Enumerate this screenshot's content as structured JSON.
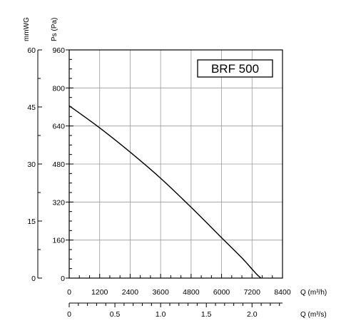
{
  "chart_data": {
    "type": "line",
    "title": "BRF 500",
    "x_axis": {
      "label": "Q (m³/h)",
      "min": 0,
      "max": 8400,
      "ticks": [
        0,
        1200,
        2400,
        3600,
        4800,
        6000,
        7200,
        8400
      ],
      "minor_step": 400
    },
    "x_axis_secondary": {
      "label": "Q (m³/s)",
      "ticks": [
        0,
        0.5,
        1.0,
        1.5,
        2.0
      ],
      "tick_labels": [
        "0",
        "0.5",
        "1.0",
        "1.5",
        "2.0"
      ],
      "minor_step": 0.1
    },
    "y_axis": {
      "label": "Ps (Pa)",
      "min": 0,
      "max": 960,
      "ticks": [
        0,
        160,
        320,
        480,
        640,
        800,
        960
      ],
      "minor_step": 40
    },
    "y_axis_secondary": {
      "label": "mmWG",
      "ticks": [
        0,
        15,
        30,
        45,
        60
      ],
      "minor_step": 7.5
    },
    "grid": true,
    "series": [
      {
        "x": [
          0,
          1200,
          2400,
          3600,
          4800,
          6000,
          6800,
          7350,
          7550
        ],
        "y": [
          725,
          632,
          530,
          420,
          298,
          170,
          85,
          20,
          0
        ]
      }
    ]
  }
}
